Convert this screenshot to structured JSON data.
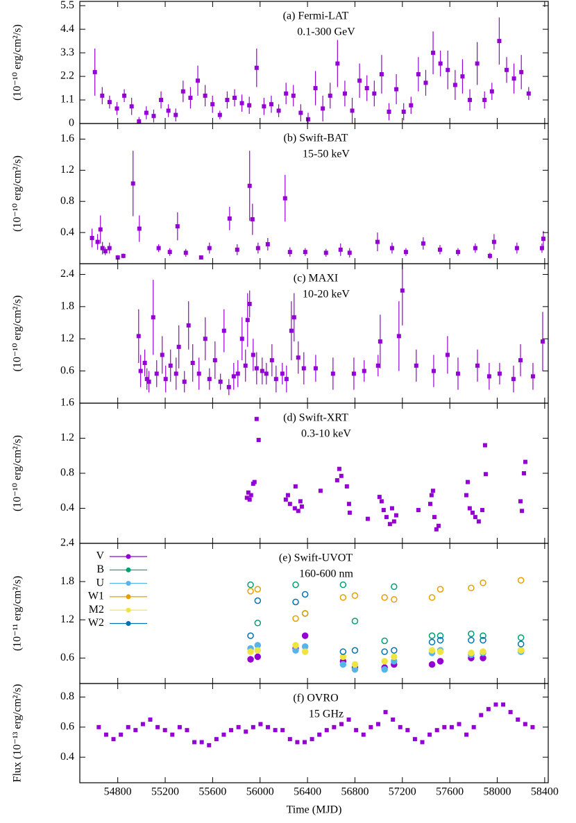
{
  "chart_data": [
    {
      "type": "errorbar",
      "title": "(a) Fermi-LAT",
      "subtitle": "0.1-300 GeV",
      "ylabel": "(10⁻¹⁰ erg/cm²/s)",
      "color": "#9400d3",
      "xlim": [
        54480,
        58430
      ],
      "ylim": [
        0,
        5.7
      ],
      "yticks": [
        0,
        1.1,
        2.2,
        3.3,
        4.4,
        5.5
      ],
      "x": [
        54607,
        54669,
        54731,
        54793,
        54855,
        54917,
        54979,
        55041,
        55103,
        55165,
        55227,
        55289,
        55351,
        55413,
        55475,
        55537,
        55599,
        55661,
        55723,
        55785,
        55847,
        55909,
        55971,
        56033,
        56095,
        56157,
        56219,
        56281,
        56343,
        56405,
        56467,
        56529,
        56591,
        56653,
        56715,
        56777,
        56839,
        56901,
        56963,
        57025,
        57087,
        57149,
        57211,
        57273,
        57335,
        57397,
        57459,
        57521,
        57583,
        57645,
        57707,
        57769,
        57831,
        57893,
        57955,
        58017,
        58079,
        58141,
        58203,
        58265
      ],
      "values": [
        2.4,
        1.3,
        1.0,
        0.7,
        1.3,
        0.8,
        0.1,
        0.5,
        0.35,
        1.1,
        0.6,
        0.4,
        1.5,
        1.2,
        2.0,
        1.3,
        0.9,
        0.4,
        1.1,
        1.2,
        0.95,
        0.85,
        2.6,
        0.8,
        0.9,
        0.6,
        1.4,
        1.3,
        0.5,
        0.2,
        1.65,
        0.7,
        1.3,
        2.8,
        1.4,
        0.6,
        2.0,
        1.65,
        1.4,
        2.3,
        0.55,
        1.6,
        0.55,
        0.85,
        2.3,
        1.9,
        3.3,
        2.8,
        2.5,
        1.8,
        2.2,
        1.1,
        2.8,
        1.1,
        1.5,
        3.85,
        2.5,
        2.1,
        2.4,
        1.4
      ],
      "errors": [
        1.1,
        0.4,
        0.3,
        0.3,
        0.3,
        0.4,
        0.2,
        0.3,
        0.3,
        0.4,
        0.3,
        0.3,
        0.5,
        0.5,
        0.7,
        0.5,
        0.4,
        0.2,
        0.4,
        0.4,
        0.4,
        0.4,
        0.9,
        0.4,
        0.4,
        0.3,
        0.5,
        0.5,
        0.4,
        0.3,
        0.8,
        0.6,
        0.6,
        1.1,
        0.6,
        0.6,
        0.8,
        0.6,
        0.6,
        0.9,
        0.4,
        0.7,
        0.4,
        0.4,
        0.8,
        0.6,
        1.0,
        0.6,
        0.9,
        0.7,
        0.8,
        0.5,
        1.0,
        0.4,
        0.4,
        1.1,
        0.6,
        0.7,
        0.8,
        0.3
      ]
    },
    {
      "type": "errorbar",
      "title": "(b) Swift-BAT",
      "subtitle": "15-50 keV",
      "ylabel": "(10⁻¹⁰ erg/cm²/s)",
      "color": "#9400d3",
      "xlim": [
        54480,
        58430
      ],
      "ylim": [
        0,
        1.8
      ],
      "yticks": [
        0.4,
        0.8,
        1.2,
        1.6
      ],
      "x": [
        54583,
        54630,
        54654,
        54671,
        54695,
        54730,
        54800,
        54847,
        54929,
        54982,
        55145,
        55239,
        55304,
        55374,
        55503,
        55573,
        55743,
        55807,
        55912,
        55936,
        55983,
        56065,
        56211,
        56252,
        56381,
        56556,
        56679,
        56755,
        56990,
        57113,
        57230,
        57376,
        57517,
        57669,
        57815,
        57938,
        57973,
        58166,
        58377,
        58389
      ],
      "values": [
        0.33,
        0.28,
        0.44,
        0.2,
        0.16,
        0.2,
        0.08,
        0.1,
        1.03,
        0.45,
        0.2,
        0.15,
        0.48,
        0.14,
        0.08,
        0.2,
        0.58,
        0.18,
        1.0,
        0.57,
        0.2,
        0.25,
        0.84,
        0.15,
        0.15,
        0.14,
        0.18,
        0.14,
        0.28,
        0.2,
        0.15,
        0.26,
        0.18,
        0.15,
        0.2,
        0.1,
        0.28,
        0.2,
        0.2,
        0.32
      ],
      "errors": [
        0.12,
        0.1,
        0.18,
        0.08,
        0.05,
        0.07,
        0.03,
        0.03,
        0.42,
        0.17,
        0.05,
        0.05,
        0.18,
        0.05,
        0.02,
        0.07,
        0.15,
        0.07,
        0.45,
        0.2,
        0.07,
        0.08,
        0.3,
        0.06,
        0.05,
        0.05,
        0.08,
        0.06,
        0.12,
        0.07,
        0.05,
        0.08,
        0.06,
        0.05,
        0.06,
        0.04,
        0.1,
        0.07,
        0.06,
        0.1
      ]
    },
    {
      "type": "errorbar",
      "title": "(c) MAXI",
      "subtitle": "10-20 keV",
      "ylabel": "(10⁻¹⁰ erg/cm²/s)",
      "color": "#9400d3",
      "xlim": [
        54480,
        58430
      ],
      "ylim": [
        0,
        2.6
      ],
      "yticks": [
        0.6,
        1.2,
        1.8,
        2.4
      ],
      "x": [
        54976,
        54993,
        55028,
        55046,
        55063,
        55099,
        55128,
        55175,
        55204,
        55245,
        55292,
        55315,
        55362,
        55397,
        55432,
        55485,
        55538,
        55573,
        55620,
        55666,
        55696,
        55737,
        55778,
        55813,
        55848,
        55877,
        55895,
        55912,
        55942,
        55971,
        56018,
        56053,
        56100,
        56135,
        56188,
        56223,
        56264,
        56287,
        56322,
        56369,
        56469,
        56615,
        56791,
        56878,
        56995,
        57013,
        57171,
        57200,
        57317,
        57464,
        57581,
        57669,
        57833,
        57932,
        58020,
        58137,
        58196,
        58301,
        58383
      ],
      "values": [
        1.25,
        0.6,
        0.75,
        0.45,
        0.4,
        1.6,
        0.55,
        0.9,
        0.45,
        0.7,
        0.55,
        1.05,
        0.4,
        1.45,
        0.75,
        0.55,
        1.2,
        0.45,
        0.8,
        0.4,
        1.35,
        0.3,
        0.5,
        0.55,
        1.2,
        0.7,
        1.55,
        1.85,
        0.9,
        0.65,
        0.6,
        0.55,
        0.8,
        0.45,
        0.55,
        0.45,
        1.35,
        1.6,
        0.85,
        0.65,
        0.65,
        0.55,
        0.55,
        0.6,
        0.7,
        1.15,
        1.25,
        2.1,
        0.7,
        0.6,
        0.9,
        0.55,
        0.7,
        0.5,
        0.55,
        0.45,
        0.8,
        0.5,
        1.15
      ],
      "errors": [
        0.5,
        0.3,
        0.25,
        0.2,
        0.2,
        0.7,
        0.25,
        0.35,
        0.25,
        0.3,
        0.3,
        0.4,
        0.2,
        0.45,
        0.35,
        0.3,
        0.4,
        0.2,
        0.35,
        0.15,
        0.4,
        0.15,
        0.25,
        0.25,
        0.4,
        0.3,
        0.5,
        0.25,
        0.3,
        0.3,
        0.25,
        0.2,
        0.3,
        0.25,
        0.2,
        0.25,
        0.55,
        0.45,
        0.3,
        0.3,
        0.25,
        0.3,
        0.3,
        0.2,
        0.2,
        0.5,
        0.65,
        0.65,
        0.3,
        0.3,
        0.35,
        0.3,
        0.3,
        0.25,
        0.2,
        0.25,
        0.3,
        0.25,
        0.55
      ]
    },
    {
      "type": "errorbar",
      "title": "(d) Swift-XRT",
      "subtitle": "0.3-10 keV",
      "ylabel": "(10⁻¹⁰ erg/cm²/s)",
      "color": "#9400d3",
      "xlim": [
        54480,
        58430
      ],
      "ylim": [
        0,
        1.6
      ],
      "yticks": [
        0.4,
        0.8,
        1.2,
        1.6
      ],
      "x": [
        55889,
        55901,
        55912,
        55924,
        55942,
        55953,
        55971,
        55988,
        56217,
        56235,
        56252,
        56293,
        56299,
        56322,
        56340,
        56352,
        56510,
        56650,
        56668,
        56685,
        56732,
        56750,
        56756,
        56908,
        57007,
        57025,
        57042,
        57066,
        57095,
        57113,
        57130,
        57148,
        57335,
        57435,
        57446,
        57458,
        57470,
        57487,
        57505,
        57739,
        57751,
        57768,
        57792,
        57815,
        57844,
        57874,
        57897,
        57903,
        58196,
        58208,
        58225,
        58237
      ],
      "values": [
        0.52,
        0.58,
        0.5,
        0.55,
        0.68,
        0.7,
        1.42,
        1.18,
        0.5,
        0.55,
        0.45,
        0.4,
        0.65,
        0.37,
        0.48,
        0.42,
        0.6,
        0.72,
        0.85,
        0.77,
        0.65,
        0.45,
        0.35,
        0.28,
        0.53,
        0.48,
        0.38,
        0.3,
        0.22,
        0.4,
        0.25,
        0.32,
        0.38,
        0.45,
        0.55,
        0.6,
        0.3,
        0.16,
        0.2,
        0.55,
        0.7,
        0.4,
        0.35,
        0.3,
        0.25,
        0.38,
        1.12,
        0.79,
        0.48,
        0.37,
        0.8,
        0.93
      ]
    },
    {
      "type": "multi",
      "title": "(e) Swift-UVOT",
      "subtitle": "160-600 nm",
      "ylabel": "(10⁻¹¹ erg/cm²/s)",
      "legend": "top-left",
      "xlim": [
        54480,
        58430
      ],
      "ylim": [
        0.2,
        2.4
      ],
      "yticks": [
        0.6,
        1.2,
        1.8,
        2.4
      ],
      "x": [
        55920,
        55980,
        56300,
        56380,
        56700,
        56800,
        57050,
        57130,
        57450,
        57520,
        57780,
        57880,
        58200
      ],
      "series": [
        {
          "name": "V",
          "color": "#9400d3",
          "values": [
            0.58,
            0.62,
            0.75,
            0.95,
            0.55,
            0.45,
            0.45,
            0.5,
            0.5,
            0.55,
            0.6,
            0.6,
            0.72
          ]
        },
        {
          "name": "B",
          "color": "#009e73",
          "values": [
            1.75,
            1.15,
            1.75,
            1.3,
            1.75,
            1.18,
            0.87,
            1.72,
            0.95,
            0.95,
            0.98,
            0.95,
            0.92
          ]
        },
        {
          "name": "U",
          "color": "#56b4e9",
          "values": [
            0.75,
            0.8,
            0.72,
            0.78,
            0.5,
            0.42,
            0.42,
            0.55,
            0.68,
            0.72,
            0.65,
            0.68,
            0.7
          ]
        },
        {
          "name": "W1",
          "color": "#e69f00",
          "values": [
            1.65,
            1.68,
            1.22,
            1.3,
            1.55,
            1.58,
            1.55,
            1.52,
            1.55,
            1.68,
            1.7,
            1.78,
            1.82
          ]
        },
        {
          "name": "M2",
          "color": "#f0e442",
          "values": [
            0.7,
            0.72,
            0.8,
            0.7,
            0.62,
            0.5,
            0.55,
            0.62,
            0.72,
            0.7,
            0.68,
            0.7,
            0.72
          ]
        },
        {
          "name": "W2",
          "color": "#0072b2",
          "values": [
            0.95,
            1.5,
            1.48,
            1.6,
            0.7,
            0.72,
            0.7,
            0.72,
            0.85,
            0.88,
            0.88,
            0.88,
            0.82
          ]
        }
      ]
    },
    {
      "type": "points",
      "title": "(f) OVRO",
      "subtitle": "15 GHz",
      "ylabel": "Flux (10⁻¹³ erg/cm²/s)",
      "color": "#9400d3",
      "xlim": [
        54480,
        58430
      ],
      "ylim": [
        0.23,
        0.89
      ],
      "yticks": [
        0.4,
        0.6,
        0.8
      ],
      "xlabel": "Time (MJD)",
      "xticks": [
        54800,
        55200,
        55600,
        56000,
        56400,
        56800,
        57200,
        57600,
        58000,
        58400
      ],
      "x": [
        54640,
        54702,
        54764,
        54826,
        54888,
        54950,
        55012,
        55074,
        55136,
        55198,
        55260,
        55322,
        55384,
        55446,
        55508,
        55570,
        55632,
        55694,
        55756,
        55818,
        55880,
        55942,
        56004,
        56066,
        56128,
        56190,
        56252,
        56314,
        56376,
        56438,
        56500,
        56562,
        56624,
        56686,
        56748,
        56810,
        56872,
        56934,
        56996,
        57058,
        57120,
        57182,
        57244,
        57306,
        57368,
        57430,
        57492,
        57554,
        57616,
        57678,
        57740,
        57802,
        57864,
        57926,
        57988,
        58050,
        58112,
        58174,
        58236,
        58298
      ],
      "values": [
        0.6,
        0.55,
        0.52,
        0.55,
        0.6,
        0.58,
        0.62,
        0.65,
        0.6,
        0.58,
        0.55,
        0.6,
        0.58,
        0.5,
        0.5,
        0.48,
        0.52,
        0.55,
        0.58,
        0.6,
        0.57,
        0.6,
        0.62,
        0.6,
        0.58,
        0.58,
        0.52,
        0.5,
        0.5,
        0.52,
        0.55,
        0.58,
        0.6,
        0.62,
        0.65,
        0.58,
        0.55,
        0.6,
        0.62,
        0.7,
        0.65,
        0.6,
        0.58,
        0.52,
        0.5,
        0.55,
        0.58,
        0.6,
        0.6,
        0.62,
        0.55,
        0.6,
        0.68,
        0.72,
        0.75,
        0.75,
        0.7,
        0.65,
        0.62,
        0.6
      ]
    }
  ]
}
